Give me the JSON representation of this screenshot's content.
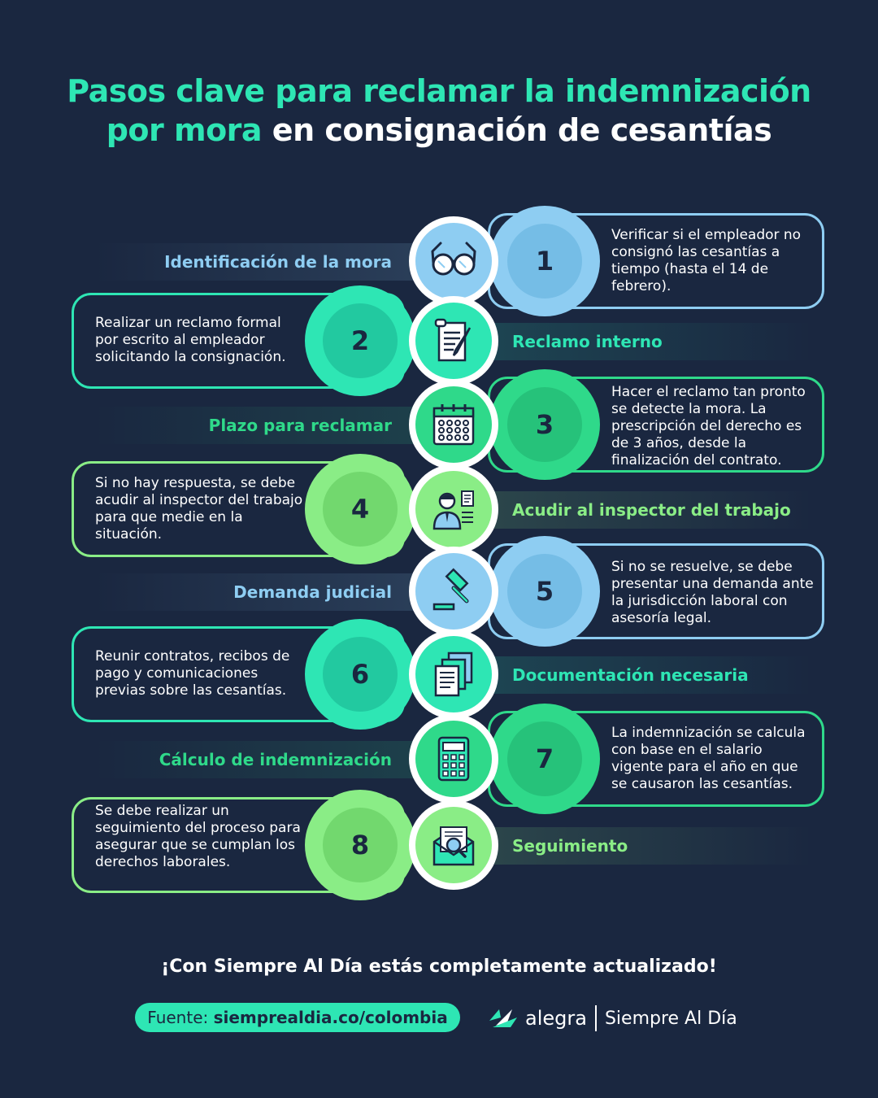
{
  "title": {
    "line1": "Pasos clave para reclamar la indemnización",
    "line2_accent": "por mora",
    "line2_rest": " en consignación de cesantías"
  },
  "colors": {
    "background": "#1a2740",
    "teal": "#2ee6b4",
    "lightblue": "#8ecdf2",
    "green": "#2fd98a",
    "lightgreen": "#8aed86"
  },
  "steps": [
    {
      "number": "1",
      "label": "Identificación de la mora",
      "description": "Verificar si el empleador no consignó las cesantías a tiempo (hasta el 14 de febrero).",
      "icon": "glasses-icon"
    },
    {
      "number": "2",
      "label": "Reclamo interno",
      "description": "Realizar un reclamo formal por escrito al empleador solicitando la consignación.",
      "icon": "document-pen-icon"
    },
    {
      "number": "3",
      "label": "Plazo para reclamar",
      "description": "Hacer el reclamo tan pronto se detecte  la mora. La prescripción del derecho es de 3 años, desde la finalización del contrato.",
      "icon": "calendar-icon"
    },
    {
      "number": "4",
      "label": "Acudir al inspector del trabajo",
      "description": "Si no hay respuesta, se debe acudir al inspector del trabajo para que medie en la situación.",
      "icon": "inspector-icon"
    },
    {
      "number": "5",
      "label": "Demanda judicial",
      "description": "Si no se resuelve, se debe presentar una demanda ante la jurisdicción laboral con asesoría legal.",
      "icon": "gavel-icon"
    },
    {
      "number": "6",
      "label": "Documentación necesaria",
      "description": "Reunir contratos, recibos de pago y comunicaciones previas sobre las cesantías.",
      "icon": "documents-icon"
    },
    {
      "number": "7",
      "label": "Cálculo de indemnización",
      "description": "La indemnización se calcula con base en el salario vigente para el año en que se causaron las cesantías.",
      "icon": "calculator-icon"
    },
    {
      "number": "8",
      "label": "Seguimiento",
      "description": "Se debe realizar un seguimiento del proceso para asegurar que se cumplan los derechos laborales.",
      "icon": "envelope-search-icon"
    }
  ],
  "footer": {
    "tagline": "¡Con Siempre Al Día estás completamente actualizado!",
    "source_prefix": "Fuente: ",
    "source_url": "siemprealdia.co/colombia",
    "brand_alegra": "alegra",
    "brand_sad": "Siempre Al Día"
  }
}
